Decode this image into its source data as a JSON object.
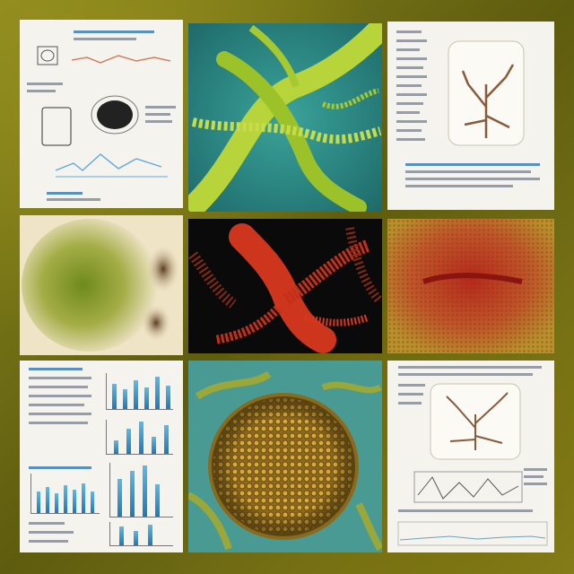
{
  "panels": [
    {
      "id": "top-left",
      "kind": "document-sketch"
    },
    {
      "id": "top-middle",
      "kind": "green-branching-organism"
    },
    {
      "id": "top-right",
      "kind": "document-tree-diagram"
    },
    {
      "id": "middle-left",
      "kind": "green-cell-blob"
    },
    {
      "id": "center",
      "kind": "red-tentacle-organism"
    },
    {
      "id": "middle-right",
      "kind": "red-cellular-texture"
    },
    {
      "id": "bottom-left",
      "kind": "document-bar-charts"
    },
    {
      "id": "bottom-middle",
      "kind": "golden-seed-head"
    },
    {
      "id": "bottom-right",
      "kind": "document-tree-diagram-graphs"
    }
  ],
  "colors": {
    "frame": "#6b6a12",
    "paper": "#f4f3ee",
    "teal": "#2f8f88",
    "green": "#9dbd28",
    "red": "#e23a1e",
    "gold": "#c89a2a",
    "blue_bars": "#1f77b8"
  }
}
